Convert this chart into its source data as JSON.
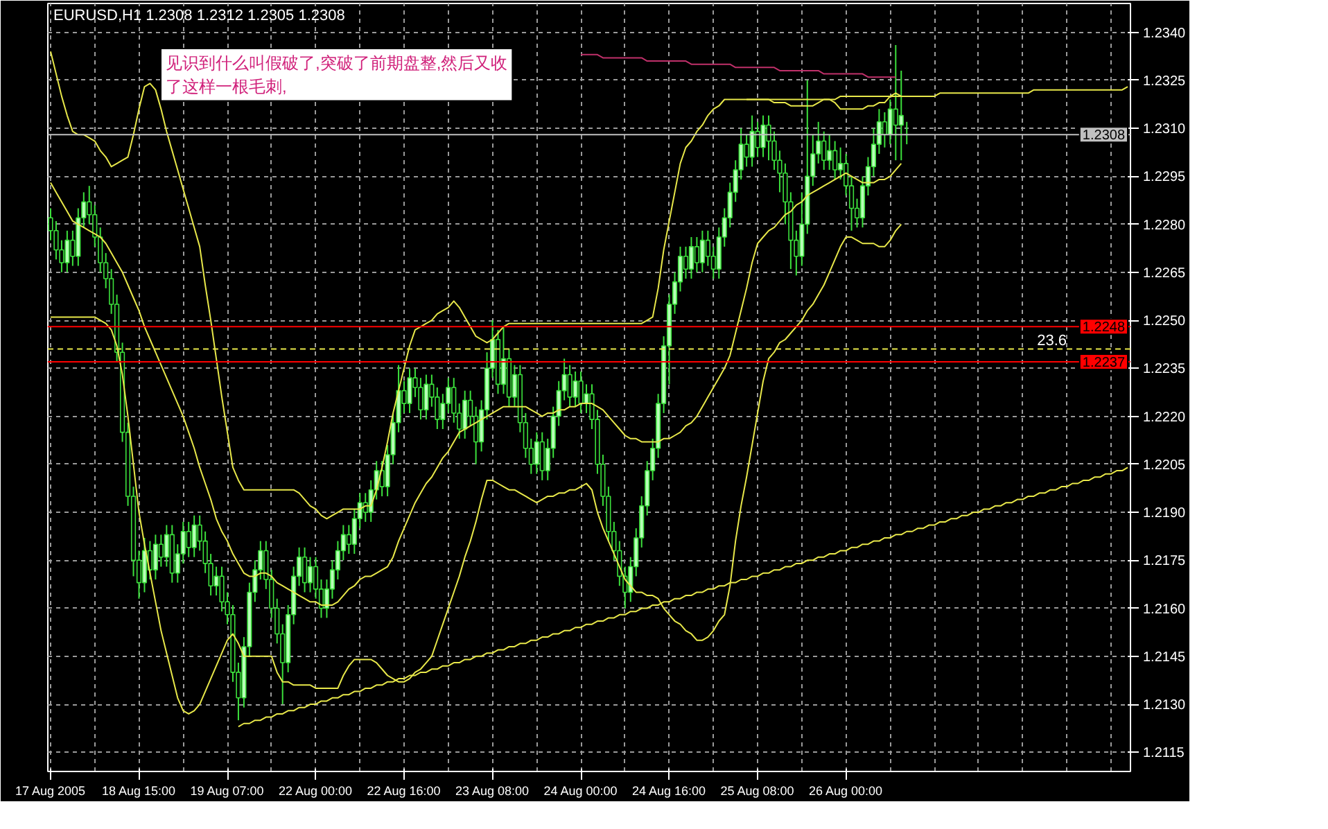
{
  "chart_data": {
    "type": "candlestick",
    "title": "EURUSD,H1  1.2308 1.2312 1.2305 1.2308",
    "annotations": [
      "见识到什么叫假破了,突破了前期盘整,然后又收了这样一根毛刺,",
      {
        "text": "23.6",
        "y": 1.2241
      }
    ],
    "categories": [
      "17 Aug 2005",
      null,
      null,
      null,
      null,
      null,
      null,
      null,
      null,
      null,
      null,
      null,
      null,
      null,
      null,
      null,
      "18 Aug 15:00",
      null,
      null,
      null,
      null,
      null,
      null,
      null,
      null,
      null,
      null,
      null,
      null,
      null,
      null,
      null,
      "19 Aug 07:00",
      null,
      null,
      null,
      null,
      null,
      null,
      null,
      null,
      null,
      null,
      null,
      null,
      null,
      null,
      null,
      "22 Aug 00:00",
      null,
      null,
      null,
      null,
      null,
      null,
      null,
      null,
      null,
      null,
      null,
      null,
      null,
      null,
      null,
      "22 Aug 16:00",
      null,
      null,
      null,
      null,
      null,
      null,
      null,
      null,
      null,
      null,
      null,
      null,
      null,
      null,
      null,
      "23 Aug 08:00",
      null,
      null,
      null,
      null,
      null,
      null,
      null,
      null,
      null,
      null,
      null,
      null,
      null,
      null,
      null,
      "24 Aug 00:00",
      null,
      null,
      null,
      null,
      null,
      null,
      null,
      null,
      null,
      null,
      null,
      null,
      null,
      null,
      null,
      "24 Aug 16:00",
      null,
      null,
      null,
      null,
      null,
      null,
      null,
      null,
      null,
      null,
      null,
      null,
      null,
      null,
      null,
      "25 Aug 08:00",
      null,
      null,
      null,
      null,
      null,
      null,
      null,
      null,
      null,
      null,
      null,
      null,
      null,
      null,
      null,
      "26 Aug 00:00",
      null,
      null,
      null,
      null,
      null,
      null,
      null,
      null,
      null,
      null,
      null,
      null,
      null,
      null,
      null,
      null,
      null,
      null,
      null,
      null,
      null,
      null,
      null,
      null,
      null,
      null,
      null,
      null,
      null,
      null,
      null,
      null,
      null,
      null,
      null,
      null,
      null,
      null,
      null,
      null,
      null,
      null,
      null,
      null,
      null,
      null,
      null,
      null,
      null,
      null,
      null
    ],
    "color": "#3ce03c",
    "ohlc": [
      [
        1.2282,
        1.2285,
        1.2275,
        1.2278
      ],
      [
        1.2278,
        1.2281,
        1.2269,
        1.2272
      ],
      [
        1.2272,
        1.2275,
        1.2265,
        1.2268
      ],
      [
        1.2268,
        1.2278,
        1.2265,
        1.2275
      ],
      [
        1.2275,
        1.2278,
        1.2267,
        1.227
      ],
      [
        1.227,
        1.2285,
        1.2267,
        1.2282
      ],
      [
        1.2282,
        1.229,
        1.2279,
        1.2287
      ],
      [
        1.2287,
        1.2292,
        1.228,
        1.2283
      ],
      [
        1.2283,
        1.2286,
        1.2273,
        1.2276
      ],
      [
        1.2276,
        1.2279,
        1.2265,
        1.2268
      ],
      [
        1.2268,
        1.2271,
        1.226,
        1.2263
      ],
      [
        1.2263,
        1.2266,
        1.2252,
        1.2255
      ],
      [
        1.2255,
        1.2258,
        1.2237,
        1.224
      ],
      [
        1.224,
        1.2243,
        1.2212,
        1.2215
      ],
      [
        1.2215,
        1.2218,
        1.2192,
        1.2195
      ],
      [
        1.2195,
        1.2198,
        1.217,
        1.2175
      ],
      [
        1.2175,
        1.2178,
        1.2163,
        1.2168
      ],
      [
        1.2168,
        1.2182,
        1.2165,
        1.2178
      ],
      [
        1.2178,
        1.2181,
        1.2169,
        1.2172
      ],
      [
        1.2172,
        1.2183,
        1.2169,
        1.218
      ],
      [
        1.218,
        1.2183,
        1.2173,
        1.2176
      ],
      [
        1.2176,
        1.2186,
        1.2173,
        1.2183
      ],
      [
        1.2183,
        1.2186,
        1.2168,
        1.2171
      ],
      [
        1.2171,
        1.218,
        1.2168,
        1.2177
      ],
      [
        1.2177,
        1.2187,
        1.2174,
        1.2184
      ],
      [
        1.2184,
        1.2187,
        1.2176,
        1.2179
      ],
      [
        1.2179,
        1.2189,
        1.2176,
        1.2186
      ],
      [
        1.2186,
        1.2189,
        1.2178,
        1.2181
      ],
      [
        1.2181,
        1.2184,
        1.2171,
        1.2174
      ],
      [
        1.2174,
        1.2177,
        1.2164,
        1.2167
      ],
      [
        1.2167,
        1.2173,
        1.2164,
        1.217
      ],
      [
        1.217,
        1.2173,
        1.2159,
        1.2162
      ],
      [
        1.2162,
        1.2165,
        1.2155,
        1.2158
      ],
      [
        1.2158,
        1.2161,
        1.2137,
        1.214
      ],
      [
        1.214,
        1.2143,
        1.2125,
        1.2132
      ],
      [
        1.2132,
        1.2151,
        1.2129,
        1.2148
      ],
      [
        1.2148,
        1.2168,
        1.2145,
        1.2165
      ],
      [
        1.2165,
        1.2175,
        1.2162,
        1.2172
      ],
      [
        1.2172,
        1.2181,
        1.2169,
        1.2178
      ],
      [
        1.2178,
        1.2181,
        1.2166,
        1.2169
      ],
      [
        1.2169,
        1.2172,
        1.2157,
        1.216
      ],
      [
        1.216,
        1.2163,
        1.2149,
        1.2152
      ],
      [
        1.2152,
        1.2155,
        1.213,
        1.2143
      ],
      [
        1.2143,
        1.2161,
        1.214,
        1.2158
      ],
      [
        1.2158,
        1.2173,
        1.2155,
        1.217
      ],
      [
        1.217,
        1.2179,
        1.2167,
        1.2176
      ],
      [
        1.2176,
        1.2179,
        1.2165,
        1.2168
      ],
      [
        1.2168,
        1.2176,
        1.2165,
        1.2173
      ],
      [
        1.2173,
        1.2176,
        1.2163,
        1.2166
      ],
      [
        1.2166,
        1.2169,
        1.2157,
        1.216
      ],
      [
        1.216,
        1.2169,
        1.2157,
        1.2166
      ],
      [
        1.2166,
        1.2175,
        1.2163,
        1.2172
      ],
      [
        1.2172,
        1.2181,
        1.2169,
        1.2178
      ],
      [
        1.2178,
        1.2186,
        1.2175,
        1.2183
      ],
      [
        1.2183,
        1.2186,
        1.2177,
        1.218
      ],
      [
        1.218,
        1.2191,
        1.2177,
        1.2188
      ],
      [
        1.2188,
        1.2196,
        1.2185,
        1.2193
      ],
      [
        1.2193,
        1.2196,
        1.2187,
        1.219
      ],
      [
        1.219,
        1.22,
        1.2187,
        1.2197
      ],
      [
        1.2197,
        1.2206,
        1.2194,
        1.2203
      ],
      [
        1.2203,
        1.2206,
        1.2195,
        1.2198
      ],
      [
        1.2198,
        1.2211,
        1.2195,
        1.2208
      ],
      [
        1.2208,
        1.2221,
        1.2205,
        1.2218
      ],
      [
        1.2218,
        1.2236,
        1.2215,
        1.2228
      ],
      [
        1.2228,
        1.2231,
        1.2221,
        1.2224
      ],
      [
        1.2224,
        1.2235,
        1.2221,
        1.2232
      ],
      [
        1.2232,
        1.2235,
        1.2226,
        1.2229
      ],
      [
        1.2229,
        1.2232,
        1.2219,
        1.2222
      ],
      [
        1.2222,
        1.2233,
        1.2219,
        1.223
      ],
      [
        1.223,
        1.2233,
        1.2223,
        1.2226
      ],
      [
        1.2226,
        1.2229,
        1.2216,
        1.2219
      ],
      [
        1.2219,
        1.2227,
        1.2216,
        1.2224
      ],
      [
        1.2224,
        1.2232,
        1.2221,
        1.2229
      ],
      [
        1.2229,
        1.2232,
        1.2218,
        1.2221
      ],
      [
        1.2221,
        1.2224,
        1.2213,
        1.2216
      ],
      [
        1.2216,
        1.2228,
        1.2213,
        1.2225
      ],
      [
        1.2225,
        1.2228,
        1.2217,
        1.222
      ],
      [
        1.222,
        1.2223,
        1.2205,
        1.2212
      ],
      [
        1.2212,
        1.2225,
        1.2209,
        1.2222
      ],
      [
        1.2222,
        1.224,
        1.2219,
        1.2235
      ],
      [
        1.2235,
        1.225,
        1.2232,
        1.2244
      ],
      [
        1.2244,
        1.2247,
        1.2227,
        1.223
      ],
      [
        1.223,
        1.2248,
        1.2227,
        1.2238
      ],
      [
        1.2238,
        1.2241,
        1.2223,
        1.2226
      ],
      [
        1.2226,
        1.2236,
        1.2223,
        1.2233
      ],
      [
        1.2233,
        1.2236,
        1.2215,
        1.2218
      ],
      [
        1.2218,
        1.2221,
        1.2207,
        1.221
      ],
      [
        1.221,
        1.2213,
        1.2202,
        1.2205
      ],
      [
        1.2205,
        1.2215,
        1.2202,
        1.2212
      ],
      [
        1.2212,
        1.2215,
        1.22,
        1.2203
      ],
      [
        1.2203,
        1.2213,
        1.22,
        1.221
      ],
      [
        1.221,
        1.2223,
        1.2207,
        1.222
      ],
      [
        1.222,
        1.2231,
        1.2217,
        1.2228
      ],
      [
        1.2228,
        1.2238,
        1.2225,
        1.2233
      ],
      [
        1.2233,
        1.2236,
        1.2223,
        1.2226
      ],
      [
        1.2226,
        1.2234,
        1.2223,
        1.2231
      ],
      [
        1.2231,
        1.2234,
        1.2221,
        1.2224
      ],
      [
        1.2224,
        1.223,
        1.2221,
        1.2227
      ],
      [
        1.2227,
        1.223,
        1.2216,
        1.2219
      ],
      [
        1.2219,
        1.2222,
        1.2202,
        1.2205
      ],
      [
        1.2205,
        1.2208,
        1.2192,
        1.2195
      ],
      [
        1.2195,
        1.2198,
        1.2181,
        1.2184
      ],
      [
        1.2184,
        1.2187,
        1.2175,
        1.2178
      ],
      [
        1.2178,
        1.2181,
        1.2167,
        1.217
      ],
      [
        1.217,
        1.2173,
        1.216,
        1.2165
      ],
      [
        1.2165,
        1.2176,
        1.2162,
        1.2173
      ],
      [
        1.2173,
        1.2185,
        1.217,
        1.2182
      ],
      [
        1.2182,
        1.2195,
        1.2179,
        1.2192
      ],
      [
        1.2192,
        1.2206,
        1.2189,
        1.2203
      ],
      [
        1.2203,
        1.2213,
        1.22,
        1.221
      ],
      [
        1.221,
        1.2227,
        1.2207,
        1.2224
      ],
      [
        1.2224,
        1.2245,
        1.2221,
        1.2242
      ],
      [
        1.2242,
        1.2258,
        1.223,
        1.2255
      ],
      [
        1.2255,
        1.2265,
        1.2252,
        1.2262
      ],
      [
        1.2262,
        1.2273,
        1.2259,
        1.227
      ],
      [
        1.227,
        1.2273,
        1.2263,
        1.2266
      ],
      [
        1.2266,
        1.2276,
        1.2263,
        1.2273
      ],
      [
        1.2273,
        1.2276,
        1.2265,
        1.2268
      ],
      [
        1.2268,
        1.2278,
        1.2265,
        1.2275
      ],
      [
        1.2275,
        1.2278,
        1.2267,
        1.227
      ],
      [
        1.227,
        1.2273,
        1.2263,
        1.2266
      ],
      [
        1.2266,
        1.2279,
        1.2263,
        1.2276
      ],
      [
        1.2276,
        1.2285,
        1.2273,
        1.2282
      ],
      [
        1.2282,
        1.2293,
        1.2279,
        1.229
      ],
      [
        1.229,
        1.23,
        1.2287,
        1.2297
      ],
      [
        1.2297,
        1.231,
        1.2294,
        1.2305
      ],
      [
        1.2305,
        1.2308,
        1.2298,
        1.2301
      ],
      [
        1.2301,
        1.2314,
        1.2298,
        1.2309
      ],
      [
        1.2309,
        1.2312,
        1.2301,
        1.2304
      ],
      [
        1.2304,
        1.2314,
        1.2301,
        1.2311
      ],
      [
        1.2311,
        1.2314,
        1.23,
        1.2306
      ],
      [
        1.2306,
        1.2309,
        1.2297,
        1.23
      ],
      [
        1.23,
        1.2303,
        1.229,
        1.2296
      ],
      [
        1.2296,
        1.2299,
        1.228,
        1.2287
      ],
      [
        1.2287,
        1.229,
        1.2266,
        1.2275
      ],
      [
        1.2275,
        1.2278,
        1.2264,
        1.227
      ],
      [
        1.227,
        1.229,
        1.2267,
        1.228
      ],
      [
        1.228,
        1.2325,
        1.2277,
        1.2295
      ],
      [
        1.2295,
        1.2308,
        1.2292,
        1.2302
      ],
      [
        1.2302,
        1.2312,
        1.2299,
        1.2306
      ],
      [
        1.2306,
        1.2309,
        1.2297,
        1.23
      ],
      [
        1.23,
        1.2308,
        1.2297,
        1.2303
      ],
      [
        1.2303,
        1.2306,
        1.2294,
        1.2297
      ],
      [
        1.2297,
        1.2304,
        1.2294,
        1.2299
      ],
      [
        1.2299,
        1.2302,
        1.2289,
        1.2292
      ],
      [
        1.2292,
        1.2295,
        1.2278,
        1.2285
      ],
      [
        1.2285,
        1.2288,
        1.2279,
        1.2282
      ],
      [
        1.2282,
        1.2295,
        1.2279,
        1.2292
      ],
      [
        1.2292,
        1.2301,
        1.2289,
        1.2298
      ],
      [
        1.2298,
        1.231,
        1.2295,
        1.2305
      ],
      [
        1.2305,
        1.2316,
        1.2302,
        1.2312
      ],
      [
        1.2312,
        1.2315,
        1.2304,
        1.2308
      ],
      [
        1.2308,
        1.2319,
        1.2305,
        1.2316
      ],
      [
        1.2316,
        1.2336,
        1.23,
        1.2311
      ],
      [
        1.2311,
        1.2328,
        1.23,
        1.2314
      ],
      [
        1.2308,
        1.2312,
        1.2305,
        1.2308
      ],
      null,
      null,
      null,
      null,
      null,
      null,
      null,
      null,
      null,
      null,
      null,
      null,
      null,
      null,
      null,
      null,
      null,
      null,
      null,
      null,
      null,
      null,
      null,
      null,
      null,
      null,
      null,
      null,
      null,
      null,
      null,
      null,
      null,
      null,
      null,
      null,
      null,
      null,
      null,
      null
    ],
    "series": [
      {
        "type": "line",
        "color": "#e8e84a",
        "values": [
          1.2334,
          1.2327,
          1.232,
          1.2314,
          1.2309,
          1.2308,
          1.2308,
          1.2307,
          1.2306,
          1.2303,
          1.2301,
          1.2298,
          1.2299,
          1.23,
          1.2301,
          1.2308,
          1.2316,
          1.2323,
          1.2324,
          1.2322,
          1.2316,
          1.2309,
          1.2303,
          1.2297,
          1.2291,
          1.2285,
          1.2279,
          1.2273,
          1.2261,
          1.225,
          1.2238,
          1.2226,
          1.2215,
          1.2204,
          1.22,
          1.2197,
          1.2197,
          1.2197,
          1.2197,
          1.2197,
          1.2197,
          1.2197,
          1.2197,
          1.2197,
          1.2197,
          1.2196,
          1.2194,
          1.2192,
          1.2191,
          1.2189,
          1.2188,
          1.2189,
          1.219,
          1.2191,
          1.2191,
          1.2191,
          1.2191,
          1.2192,
          1.2192,
          1.2197,
          1.2204,
          1.2212,
          1.2221,
          1.2228,
          1.2235,
          1.2242,
          1.2247,
          1.2248,
          1.2249,
          1.225,
          1.2252,
          1.2253,
          1.2254,
          1.2256,
          1.2254,
          1.2251,
          1.2248,
          1.2245,
          1.2244,
          1.2243,
          1.2244,
          1.2246,
          1.2248,
          1.2249,
          1.2249,
          1.2249,
          1.2249,
          1.2249,
          1.2249,
          1.2249,
          1.2249,
          1.2249,
          1.2249,
          1.2249,
          1.2249,
          1.2249,
          1.2249,
          1.2249,
          1.2249,
          1.2249,
          1.2249,
          1.2249,
          1.2249,
          1.2249,
          1.2249,
          1.2249,
          1.2249,
          1.2249,
          1.225,
          1.2251,
          1.226,
          1.2272,
          1.2281,
          1.229,
          1.2299,
          1.2304,
          1.2306,
          1.2309,
          1.2311,
          1.2314,
          1.2316,
          1.2317,
          1.2319,
          1.2319,
          1.2319,
          1.2319,
          1.2319,
          1.2319,
          1.2319,
          1.2319,
          1.2319,
          1.2318,
          1.2318,
          1.2318,
          1.2317,
          1.2317,
          1.2317,
          1.2317,
          1.2317,
          1.2318,
          1.2319,
          1.2319,
          1.2318,
          1.2316,
          1.2316,
          1.2316,
          1.2316,
          1.2316,
          1.2317,
          1.2317,
          1.2318,
          1.2318,
          1.232,
          1.2321,
          1.232,
          null,
          null,
          null,
          null,
          null,
          null,
          null,
          null,
          null,
          null,
          null,
          null,
          null,
          null,
          null,
          null,
          null,
          null,
          null,
          null,
          null,
          null,
          null,
          null,
          null,
          null,
          null,
          null,
          null,
          null,
          null,
          null,
          null,
          null,
          null,
          null,
          null,
          null,
          null,
          null,
          null
        ]
      },
      {
        "type": "line",
        "color": "#e8e84a",
        "values": [
          1.2293,
          1.229,
          1.2287,
          1.2284,
          1.2281,
          1.228,
          1.2279,
          1.2278,
          1.2277,
          1.2276,
          1.2274,
          1.2271,
          1.2268,
          1.2265,
          1.2261,
          1.2257,
          1.2253,
          1.2248,
          1.2244,
          1.224,
          1.2236,
          1.2232,
          1.2228,
          1.2224,
          1.222,
          1.2215,
          1.221,
          1.2204,
          1.2199,
          1.2194,
          1.2188,
          1.2184,
          1.2181,
          1.2177,
          1.2174,
          1.2171,
          1.217,
          1.217,
          1.2171,
          1.2171,
          1.217,
          1.2168,
          1.2167,
          1.2166,
          1.2165,
          1.2164,
          1.2163,
          1.2162,
          1.2162,
          1.2161,
          1.2161,
          1.2161,
          1.2162,
          1.2164,
          1.2166,
          1.2167,
          1.2169,
          1.217,
          1.217,
          1.2171,
          1.2172,
          1.2173,
          1.2176,
          1.2181,
          1.2185,
          1.2189,
          1.2193,
          1.2196,
          1.2199,
          1.2201,
          1.2204,
          1.2207,
          1.2209,
          1.2212,
          1.2215,
          1.2216,
          1.2217,
          1.2218,
          1.2219,
          1.222,
          1.2221,
          1.2222,
          1.2223,
          1.2223,
          1.2223,
          1.2223,
          1.2223,
          1.2222,
          1.2221,
          1.222,
          1.2221,
          1.2221,
          1.2222,
          1.2222,
          1.2223,
          1.2223,
          1.2224,
          1.2224,
          1.2224,
          1.2223,
          1.2222,
          1.222,
          1.2218,
          1.2216,
          1.2214,
          1.2213,
          1.2213,
          1.2212,
          1.2212,
          1.2212,
          1.2212,
          1.2213,
          1.2213,
          1.2214,
          1.2215,
          1.2217,
          1.2218,
          1.222,
          1.2223,
          1.2226,
          1.2229,
          1.2232,
          1.2235,
          1.2239,
          1.2246,
          1.2253,
          1.226,
          1.2268,
          1.2274,
          1.2276,
          1.2278,
          1.2279,
          1.2281,
          1.2283,
          1.2284,
          1.2286,
          1.2287,
          1.2289,
          1.229,
          1.2291,
          1.2292,
          1.2293,
          1.2294,
          1.2295,
          1.2296,
          1.2295,
          1.2294,
          1.2293,
          1.2293,
          1.2293,
          1.2294,
          1.2294,
          1.2295,
          1.2297,
          1.2299,
          null,
          null,
          null,
          null,
          null,
          null,
          null,
          null,
          null,
          null,
          null,
          null,
          null,
          null,
          null,
          null,
          null,
          null,
          null,
          null,
          null,
          null,
          null,
          null,
          null,
          null,
          null,
          null,
          null,
          null,
          null,
          null,
          null,
          null,
          null,
          null,
          null,
          null,
          null,
          null,
          null
        ]
      },
      {
        "type": "line",
        "color": "#e8e84a",
        "values": [
          1.2251,
          1.2251,
          1.2251,
          1.2251,
          1.2251,
          1.2251,
          1.2251,
          1.2251,
          1.2251,
          1.225,
          1.2249,
          1.2247,
          1.2242,
          1.2233,
          1.222,
          1.2205,
          1.219,
          1.218,
          1.2171,
          1.2162,
          1.2153,
          1.2146,
          1.2139,
          1.2132,
          1.2128,
          1.2127,
          1.2128,
          1.213,
          1.2134,
          1.2138,
          1.2142,
          1.2146,
          1.215,
          1.2152,
          1.2149,
          1.2145,
          1.2145,
          1.2145,
          1.2145,
          1.2145,
          1.2145,
          1.214,
          1.2137,
          1.2137,
          1.2136,
          1.2136,
          1.2136,
          1.2136,
          1.2135,
          1.2135,
          1.2135,
          1.2135,
          1.2135,
          1.2139,
          1.2142,
          1.2144,
          1.2144,
          1.2144,
          1.2144,
          1.2143,
          1.2141,
          1.2139,
          1.2138,
          1.2137,
          1.2137,
          1.2138,
          1.214,
          1.2141,
          1.2143,
          1.2145,
          1.215,
          1.2155,
          1.216,
          1.2165,
          1.217,
          1.2176,
          1.2181,
          1.2187,
          1.2194,
          1.22,
          1.22,
          1.2199,
          1.2198,
          1.2197,
          1.2197,
          1.2196,
          1.2195,
          1.2194,
          1.2193,
          1.2194,
          1.2195,
          1.2195,
          1.2196,
          1.2196,
          1.2197,
          1.2197,
          1.2198,
          1.2199,
          1.2197,
          1.219,
          1.2185,
          1.2181,
          1.2177,
          1.2173,
          1.2169,
          1.2167,
          1.2165,
          1.2165,
          1.2164,
          1.2164,
          1.2163,
          1.216,
          1.2158,
          1.2156,
          1.2155,
          1.2153,
          1.2152,
          1.215,
          1.215,
          1.2151,
          1.2153,
          1.2156,
          1.2158,
          1.2167,
          1.2181,
          1.2192,
          1.2201,
          1.2211,
          1.2221,
          1.2231,
          1.2238,
          1.224,
          1.2243,
          1.2244,
          1.2246,
          1.2248,
          1.225,
          1.2253,
          1.2255,
          1.2258,
          1.2261,
          1.2265,
          1.2269,
          1.2273,
          1.2276,
          1.2276,
          1.2275,
          1.2274,
          1.2274,
          1.2274,
          1.2273,
          1.2273,
          1.2275,
          1.2278,
          1.228,
          null,
          null,
          null,
          null,
          null,
          null,
          null,
          null,
          null,
          null,
          null,
          null,
          null,
          null,
          null,
          null,
          null,
          null,
          null,
          null,
          null,
          null,
          null,
          null,
          null,
          null,
          null,
          null,
          null,
          null,
          null,
          null,
          null,
          null,
          null,
          null,
          null,
          null,
          null,
          null,
          null
        ]
      },
      {
        "type": "line",
        "color": "#e8e84a",
        "values": [
          null,
          null,
          null,
          null,
          null,
          null,
          null,
          null,
          null,
          null,
          null,
          null,
          null,
          null,
          null,
          null,
          null,
          null,
          null,
          null,
          null,
          null,
          null,
          null,
          null,
          null,
          null,
          null,
          null,
          null,
          null,
          null,
          null,
          null,
          1.2123,
          1.2124,
          1.2124,
          1.2125,
          1.2125,
          1.2126,
          1.2126,
          1.2127,
          1.2127,
          1.2128,
          1.2128,
          1.2129,
          1.2129,
          1.213,
          1.213,
          1.2131,
          1.2131,
          1.2132,
          1.2132,
          1.2133,
          1.2133,
          1.2134,
          1.2134,
          1.2135,
          1.2135,
          1.2136,
          1.2136,
          1.2137,
          1.2137,
          1.2138,
          1.2138,
          1.2139,
          1.2139,
          1.214,
          1.214,
          1.2141,
          1.2141,
          1.2142,
          1.2142,
          1.2143,
          1.2143,
          1.2144,
          1.2144,
          1.2145,
          1.2145,
          1.2146,
          1.2146,
          1.2147,
          1.2147,
          1.2148,
          1.2148,
          1.2149,
          1.2149,
          1.215,
          1.215,
          1.2151,
          1.2151,
          1.2152,
          1.2152,
          1.2153,
          1.2153,
          1.2154,
          1.2154,
          1.2155,
          1.2155,
          1.2156,
          1.2156,
          1.2157,
          1.2157,
          1.2158,
          1.2158,
          1.2159,
          1.2159,
          1.216,
          1.216,
          1.2161,
          1.2161,
          1.2162,
          1.2162,
          1.2163,
          1.2163,
          1.2164,
          1.2164,
          1.2165,
          1.2165,
          1.2166,
          1.2166,
          1.2167,
          1.2167,
          1.2168,
          1.2168,
          1.2169,
          1.2169,
          1.217,
          1.217,
          1.2171,
          1.2171,
          1.2172,
          1.2172,
          1.2173,
          1.2173,
          1.2174,
          1.2174,
          1.2175,
          1.2175,
          1.2176,
          1.2176,
          1.2177,
          1.2177,
          1.2178,
          1.2178,
          1.2179,
          1.2179,
          1.218,
          1.218,
          1.2181,
          1.2181,
          1.2182,
          1.2182,
          1.2183,
          1.2183,
          1.2184,
          1.2184,
          1.2185,
          1.2185,
          1.2186,
          1.2186,
          1.2187,
          1.2187,
          1.2188,
          1.2188,
          1.2189,
          1.2189,
          1.219,
          1.219,
          1.2191,
          1.2191,
          1.2192,
          1.2192,
          1.2193,
          1.2193,
          1.2194,
          1.2194,
          1.2195,
          1.2195,
          1.2196,
          1.2196,
          1.2197,
          1.2197,
          1.2198,
          1.2198,
          1.2199,
          1.2199,
          1.22,
          1.22,
          1.2201,
          1.2201,
          1.2202,
          1.2202,
          1.2203,
          1.2203,
          1.2204
        ]
      },
      {
        "type": "line",
        "color": "#e8e84a",
        "values": [
          null,
          null,
          null,
          null,
          null,
          null,
          null,
          null,
          null,
          null,
          null,
          null,
          null,
          null,
          null,
          null,
          null,
          null,
          null,
          null,
          null,
          null,
          null,
          null,
          null,
          null,
          null,
          null,
          null,
          null,
          null,
          null,
          null,
          null,
          null,
          null,
          null,
          null,
          null,
          null,
          null,
          null,
          null,
          null,
          null,
          null,
          null,
          null,
          null,
          null,
          null,
          null,
          null,
          null,
          null,
          null,
          null,
          null,
          null,
          null,
          null,
          null,
          null,
          null,
          null,
          null,
          null,
          null,
          null,
          null,
          null,
          null,
          null,
          null,
          null,
          null,
          null,
          null,
          null,
          null,
          null,
          null,
          null,
          null,
          null,
          null,
          null,
          null,
          null,
          null,
          null,
          null,
          null,
          null,
          null,
          null,
          null,
          null,
          null,
          null,
          null,
          null,
          null,
          null,
          null,
          null,
          null,
          null,
          null,
          null,
          null,
          null,
          null,
          null,
          null,
          null,
          null,
          null,
          null,
          null,
          null,
          null,
          null,
          null,
          null,
          null,
          1.2319,
          1.2319,
          1.2319,
          1.2319,
          1.2319,
          1.2319,
          1.2319,
          1.2319,
          1.2319,
          1.2319,
          1.2319,
          1.2319,
          1.2319,
          1.2319,
          1.2319,
          1.2319,
          1.2319,
          1.232,
          1.232,
          1.232,
          1.232,
          1.232,
          1.232,
          1.232,
          1.232,
          1.232,
          1.232,
          1.232,
          1.232,
          1.232,
          1.232,
          1.232,
          1.232,
          1.232,
          1.232,
          1.2321,
          1.2321,
          1.2321,
          1.2321,
          1.2321,
          1.2321,
          1.2321,
          1.2321,
          1.2321,
          1.2321,
          1.2321,
          1.2321,
          1.2321,
          1.2321,
          1.2321,
          1.2321,
          1.2321,
          1.2322,
          1.2322,
          1.2322,
          1.2322,
          1.2322,
          1.2322,
          1.2322,
          1.2322,
          1.2322,
          1.2322,
          1.2322,
          1.2322,
          1.2322,
          1.2322,
          1.2322,
          1.2322,
          1.2322,
          1.2323
        ]
      },
      {
        "type": "line",
        "color": "#c0306a",
        "values": [
          null,
          null,
          null,
          null,
          null,
          null,
          null,
          null,
          null,
          null,
          null,
          null,
          null,
          null,
          null,
          null,
          null,
          null,
          null,
          null,
          null,
          null,
          null,
          null,
          null,
          null,
          null,
          null,
          null,
          null,
          null,
          null,
          null,
          null,
          null,
          null,
          null,
          null,
          null,
          null,
          null,
          null,
          null,
          null,
          null,
          null,
          null,
          null,
          null,
          null,
          null,
          null,
          null,
          null,
          null,
          null,
          null,
          null,
          null,
          null,
          null,
          null,
          null,
          null,
          null,
          null,
          null,
          null,
          null,
          null,
          null,
          null,
          null,
          null,
          null,
          null,
          null,
          null,
          null,
          null,
          null,
          null,
          null,
          null,
          null,
          null,
          null,
          null,
          null,
          null,
          null,
          null,
          null,
          null,
          null,
          null,
          1.2333,
          1.2333,
          1.2333,
          1.2333,
          1.2332,
          1.2332,
          1.2332,
          1.2332,
          1.2332,
          1.2332,
          1.2332,
          1.2332,
          1.2331,
          1.2331,
          1.2331,
          1.2331,
          1.2331,
          1.2331,
          1.2331,
          1.2331,
          1.233,
          1.233,
          1.233,
          1.233,
          1.233,
          1.233,
          1.233,
          1.233,
          1.2329,
          1.2329,
          1.2329,
          1.2329,
          1.2329,
          1.2329,
          1.2329,
          1.2329,
          1.2328,
          1.2328,
          1.2328,
          1.2328,
          1.2328,
          1.2328,
          1.2328,
          1.2328,
          1.2327,
          1.2327,
          1.2327,
          1.2327,
          1.2327,
          1.2327,
          1.2327,
          1.2327,
          1.2326,
          1.2326,
          1.2326,
          1.2326,
          1.2326,
          1.2326,
          null,
          null,
          null,
          null,
          null,
          null,
          null,
          null,
          null,
          null,
          null,
          null,
          null,
          null,
          null,
          null,
          null,
          null,
          null,
          null,
          null,
          null,
          null,
          null,
          null,
          null,
          null,
          null,
          null,
          null,
          null,
          null,
          null,
          null,
          null,
          null,
          null,
          null,
          null,
          null,
          null,
          null
        ]
      }
    ],
    "ref_lines": [
      {
        "axis": "y",
        "value": 1.2248,
        "label": "1.2248",
        "color": "#ff0000"
      },
      {
        "axis": "y",
        "value": 1.2237,
        "label": "1.2237",
        "color": "#ff0000"
      },
      {
        "axis": "y",
        "value": 1.2241,
        "color": "#e8e84a",
        "line_style": "dashed"
      },
      {
        "axis": "y",
        "value": 1.2308,
        "label": "1.2308",
        "color": "#c0c0c0"
      }
    ],
    "ylim": [
      1.2109,
      1.2349
    ],
    "yticks": [
      1.2115,
      {
        "value": 1.213,
        "label": "1.2130"
      },
      1.2145,
      {
        "value": 1.216,
        "label": "1.2160"
      },
      1.2175,
      {
        "value": 1.219,
        "label": "1.2190"
      },
      1.2205,
      {
        "value": 1.222,
        "label": "1.2220"
      },
      1.2235,
      {
        "value": 1.225,
        "label": "1.2250"
      },
      1.2265,
      {
        "value": 1.228,
        "label": "1.2280"
      },
      1.2295,
      {
        "value": 1.231,
        "label": "1.2310"
      },
      1.2325,
      {
        "value": 1.234,
        "label": "1.2340"
      }
    ],
    "grid": true
  }
}
